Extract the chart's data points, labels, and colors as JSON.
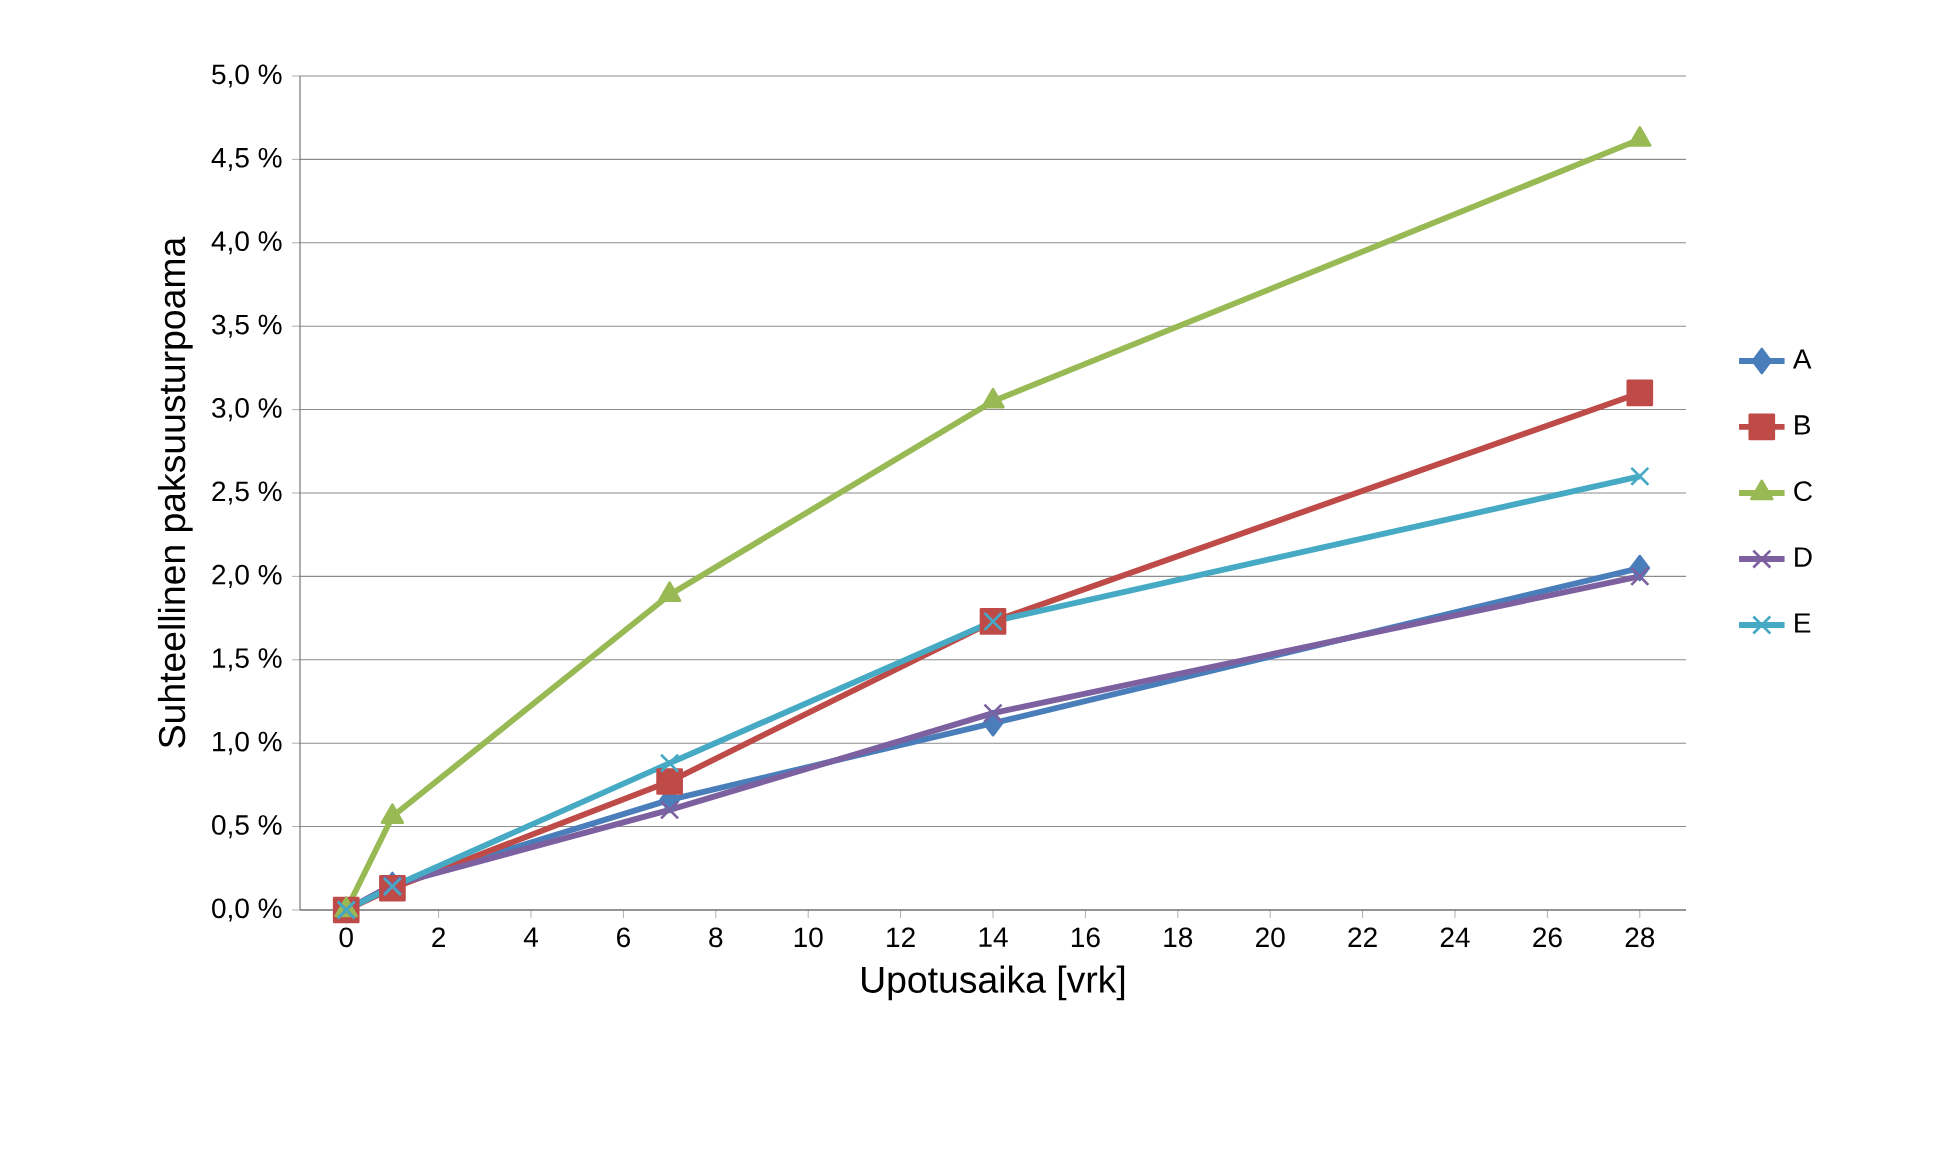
{
  "chart_data": {
    "type": "line",
    "xlabel": "Upotusaika [vrk]",
    "ylabel": "Suhteellinen paksuusturpoama",
    "x": [
      0,
      1,
      7,
      14,
      28
    ],
    "series": [
      {
        "name": "A",
        "color": "#4a7ebb",
        "marker": "diamond",
        "values": [
          0,
          0.15,
          0.66,
          1.12,
          2.05
        ]
      },
      {
        "name": "B",
        "color": "#be4b48",
        "marker": "square",
        "values": [
          0,
          0.13,
          0.77,
          1.73,
          3.1
        ]
      },
      {
        "name": "C",
        "color": "#98b954",
        "marker": "triangle",
        "values": [
          0,
          0.56,
          1.89,
          3.05,
          4.62
        ]
      },
      {
        "name": "D",
        "color": "#7d60a0",
        "marker": "cross",
        "values": [
          0,
          0.15,
          0.6,
          1.18,
          2.0
        ]
      },
      {
        "name": "E",
        "color": "#46aac5",
        "marker": "cross",
        "values": [
          0,
          0.14,
          0.88,
          1.73,
          2.6
        ]
      }
    ],
    "xlim": [
      -1,
      29
    ],
    "xticks": [
      0,
      2,
      4,
      6,
      8,
      10,
      12,
      14,
      16,
      18,
      20,
      22,
      24,
      26,
      28
    ],
    "ylim": [
      0,
      5
    ],
    "yticks": [
      {
        "value": 0,
        "label": "0,0 %"
      },
      {
        "value": 0.5,
        "label": "0,5 %"
      },
      {
        "value": 1,
        "label": "1,0 %"
      },
      {
        "value": 1.5,
        "label": "1,5 %"
      },
      {
        "value": 2,
        "label": "2,0 %"
      },
      {
        "value": 2.5,
        "label": "2,5 %"
      },
      {
        "value": 3,
        "label": "3,0 %"
      },
      {
        "value": 3.5,
        "label": "3,5 %"
      },
      {
        "value": 4,
        "label": "4,0 %"
      },
      {
        "value": 4.5,
        "label": "4,5 %"
      },
      {
        "value": 5,
        "label": "5,0 %"
      }
    ],
    "grid": "y",
    "legend": "right",
    "line_style": "solid"
  }
}
